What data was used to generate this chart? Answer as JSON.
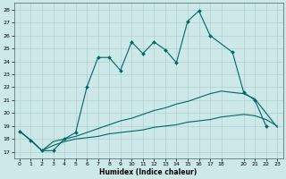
{
  "xlabel": "Humidex (Indice chaleur)",
  "background_color": "#cce8e8",
  "grid_color": "#b0d0d0",
  "line_color": "#006666",
  "xlim": [
    -0.5,
    23.5
  ],
  "ylim": [
    16.5,
    28.5
  ],
  "yticks": [
    17,
    18,
    19,
    20,
    21,
    22,
    23,
    24,
    25,
    26,
    27,
    28
  ],
  "xticks": [
    0,
    1,
    2,
    3,
    4,
    5,
    6,
    7,
    8,
    9,
    10,
    11,
    12,
    13,
    14,
    15,
    16,
    17,
    18,
    20,
    21,
    22,
    23
  ],
  "line1_x": [
    0,
    1,
    2,
    3,
    4,
    5,
    6,
    7,
    8,
    9,
    10,
    11,
    12,
    13,
    14,
    15,
    16,
    17,
    19,
    20,
    21,
    22
  ],
  "line1_y": [
    18.6,
    17.9,
    17.1,
    17.1,
    18.0,
    18.5,
    22.0,
    24.3,
    24.3,
    23.3,
    25.5,
    24.6,
    25.5,
    24.9,
    23.9,
    27.1,
    27.9,
    26.0,
    24.7,
    21.6,
    21.0,
    19.0
  ],
  "line2_x": [
    0,
    1,
    2,
    3,
    4,
    5,
    6,
    7,
    8,
    9,
    10,
    11,
    12,
    13,
    14,
    15,
    16,
    17,
    18,
    19,
    20,
    21,
    22,
    23
  ],
  "line2_y": [
    18.6,
    17.9,
    17.1,
    17.8,
    18.0,
    18.2,
    18.5,
    18.8,
    19.1,
    19.4,
    19.6,
    19.9,
    20.2,
    20.4,
    20.7,
    20.9,
    21.2,
    21.5,
    21.7,
    21.6,
    21.5,
    21.1,
    20.0,
    18.9
  ],
  "line3_x": [
    0,
    1,
    2,
    3,
    4,
    5,
    6,
    7,
    8,
    9,
    10,
    11,
    12,
    13,
    14,
    15,
    16,
    17,
    18,
    19,
    20,
    21,
    22,
    23
  ],
  "line3_y": [
    18.6,
    17.9,
    17.1,
    17.5,
    17.8,
    18.0,
    18.1,
    18.2,
    18.4,
    18.5,
    18.6,
    18.7,
    18.9,
    19.0,
    19.1,
    19.3,
    19.4,
    19.5,
    19.7,
    19.8,
    19.9,
    19.8,
    19.5,
    19.0
  ]
}
